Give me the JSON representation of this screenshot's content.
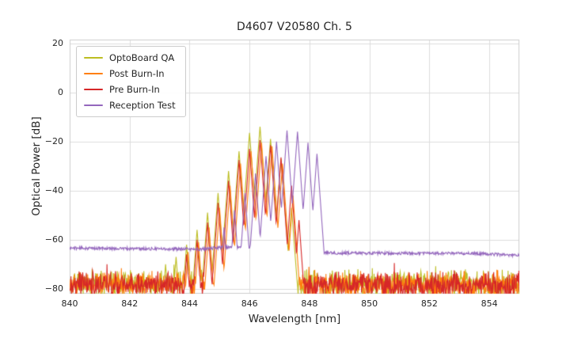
{
  "chart_data": {
    "type": "line",
    "title": "D4607 V20580 Ch. 5",
    "xlabel": "Wavelength [nm]",
    "ylabel": "Optical Power [dB]",
    "xlim": [
      840,
      855
    ],
    "ylim": [
      -82,
      21.5
    ],
    "grid": true,
    "legend_position": "upper left",
    "xticks": [
      {
        "v": 840,
        "label": "840"
      },
      {
        "v": 842,
        "label": "842"
      },
      {
        "v": 844,
        "label": "844"
      },
      {
        "v": 846,
        "label": "846"
      },
      {
        "v": 848,
        "label": "848"
      },
      {
        "v": 850,
        "label": "850"
      },
      {
        "v": 852,
        "label": "852"
      },
      {
        "v": 854,
        "label": "854"
      }
    ],
    "yticks": [
      {
        "v": 20,
        "label": "20"
      },
      {
        "v": 0,
        "label": "0"
      },
      {
        "v": -20,
        "label": "−20"
      },
      {
        "v": -40,
        "label": "−40"
      },
      {
        "v": -60,
        "label": "−60"
      },
      {
        "v": -80,
        "label": "−80"
      }
    ],
    "series": [
      {
        "name": "OptoBoard QA",
        "color": "#bcbd22",
        "seed": 11,
        "slope_db_per_nm": 160,
        "noise_up_db": 6,
        "noise_down_db": 7,
        "floor_db": [
          [
            840,
            -77.5
          ],
          [
            855,
            -77.5
          ]
        ],
        "peaks_nm_db": [
          [
            843.2,
            -70
          ],
          [
            843.55,
            -67
          ],
          [
            843.9,
            -62
          ],
          [
            844.25,
            -56
          ],
          [
            844.6,
            -49
          ],
          [
            844.95,
            -41
          ],
          [
            845.3,
            -32
          ],
          [
            845.65,
            -24
          ],
          [
            846.0,
            -16.5
          ],
          [
            846.35,
            -14
          ],
          [
            846.7,
            -19
          ],
          [
            847.05,
            -27
          ],
          [
            847.4,
            -47
          ]
        ]
      },
      {
        "name": "Post Burn-In",
        "color": "#ff7f0e",
        "seed": 22,
        "slope_db_per_nm": 170,
        "noise_up_db": 5,
        "noise_down_db": 7,
        "floor_db": [
          [
            840,
            -77.5
          ],
          [
            855,
            -77.5
          ]
        ],
        "peaks_nm_db": [
          [
            843.95,
            -65
          ],
          [
            844.3,
            -61
          ],
          [
            844.65,
            -55
          ],
          [
            845.0,
            -47
          ],
          [
            845.35,
            -38
          ],
          [
            845.7,
            -29
          ],
          [
            846.05,
            -24
          ],
          [
            846.4,
            -20.5
          ],
          [
            846.75,
            -22
          ],
          [
            847.1,
            -29
          ],
          [
            847.45,
            -42
          ]
        ]
      },
      {
        "name": "Pre Burn-In",
        "color": "#d62728",
        "seed": 33,
        "slope_db_per_nm": 170,
        "noise_up_db": 5,
        "noise_down_db": 7,
        "floor_db": [
          [
            840,
            -77.5
          ],
          [
            855,
            -77.5
          ]
        ],
        "peaks_nm_db": [
          [
            843.9,
            -66
          ],
          [
            844.25,
            -60
          ],
          [
            844.6,
            -53
          ],
          [
            844.95,
            -45
          ],
          [
            845.3,
            -36
          ],
          [
            845.65,
            -27.5
          ],
          [
            846.0,
            -23
          ],
          [
            846.35,
            -19.5
          ],
          [
            846.7,
            -21.5
          ],
          [
            847.05,
            -26.5
          ],
          [
            847.4,
            -38
          ],
          [
            847.65,
            -52
          ]
        ]
      },
      {
        "name": "Reception Test",
        "color": "#9467bd",
        "seed": 44,
        "slope_db_per_nm": 170,
        "noise_up_db": 0.6,
        "noise_down_db": 0.6,
        "floor_db": [
          [
            840,
            -63.4
          ],
          [
            844.3,
            -63.9
          ],
          [
            845.2,
            -63.1
          ],
          [
            848.3,
            -63.4
          ],
          [
            848.5,
            -65.4
          ],
          [
            853.5,
            -65.6
          ],
          [
            855,
            -66.4
          ]
        ],
        "peaks_nm_db": [
          [
            845.15,
            -55
          ],
          [
            845.5,
            -48
          ],
          [
            845.85,
            -41
          ],
          [
            846.2,
            -33
          ],
          [
            846.55,
            -26
          ],
          [
            846.9,
            -20
          ],
          [
            847.25,
            -15.5
          ],
          [
            847.6,
            -16
          ],
          [
            847.95,
            -20.5
          ],
          [
            848.25,
            -25
          ]
        ]
      }
    ]
  }
}
